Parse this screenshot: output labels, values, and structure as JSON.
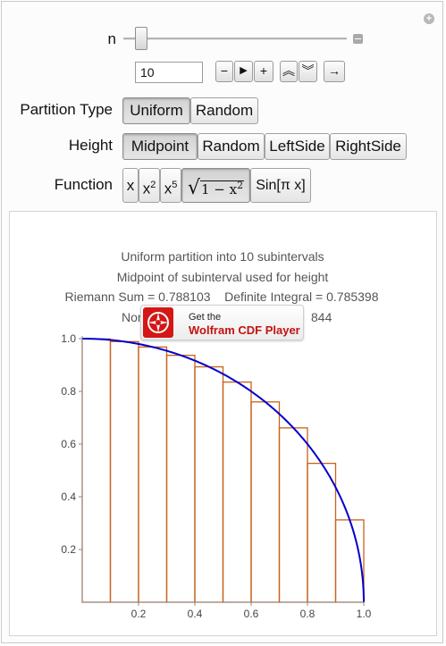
{
  "controls": {
    "n_label": "n",
    "n_value": "10",
    "n_slider_fraction": 0.08,
    "stepper": {
      "minus": "−",
      "play": "▶",
      "plus": "+",
      "faster": "≈",
      "slower": "≈",
      "direction": "→"
    },
    "partition": {
      "label": "Partition Type",
      "options": [
        "Uniform",
        "Random"
      ],
      "selected": "Uniform"
    },
    "height": {
      "label": "Height",
      "options": [
        "Midpoint",
        "Random",
        "LeftSide",
        "RightSide"
      ],
      "selected": "Midpoint"
    },
    "function": {
      "label": "Function",
      "options": [
        "x",
        "x2",
        "x5",
        "√(1 − x2)",
        "Sin[π x]"
      ],
      "x_text": "x",
      "x2_base": "x",
      "x2_exp": "2",
      "x5_base": "x",
      "x5_exp": "5",
      "sqrt_body": "1 − x",
      "sqrt_exp": "2",
      "sin_text": "Sin[π x]",
      "selected": "√(1 − x2)"
    }
  },
  "plot": {
    "line1": "Uniform partition into 10 subintervals",
    "line2": "Midpoint of subinterval used for height",
    "line3": "Riemann Sum = 0.788103    Definite Integral = 0.785398",
    "line4_left": "Nor",
    "line4_right": "844",
    "curve_color": "#0000cc",
    "rect_color": "#c8621b"
  },
  "chart_data": {
    "type": "bar",
    "x": [
      0.05,
      0.15,
      0.25,
      0.35,
      0.45,
      0.55,
      0.65,
      0.75,
      0.85,
      0.95
    ],
    "values": [
      0.99875,
      0.98869,
      0.96825,
      0.93675,
      0.89303,
      0.83516,
      0.75993,
      0.66144,
      0.52678,
      0.31225
    ],
    "xlim": [
      0,
      1
    ],
    "ylim": [
      0,
      1
    ],
    "xticks": [
      "0.2",
      "0.4",
      "0.6",
      "0.8",
      "1.0"
    ],
    "yticks": [
      "0.2",
      "0.4",
      "0.6",
      "0.8",
      "1.0"
    ]
  },
  "cdf_badge": {
    "get": "Get the",
    "name": "Wolfram CDF Player"
  }
}
